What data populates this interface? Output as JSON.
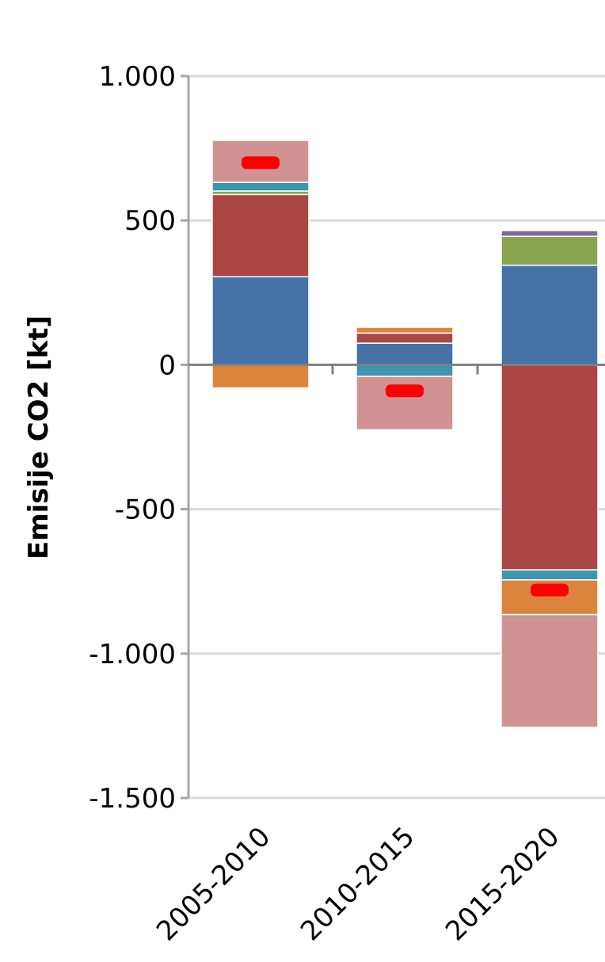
{
  "chart_data": {
    "type": "bar",
    "stacked": true,
    "categories": [
      "2005-2010",
      "2010-2015",
      "2015-2020"
    ],
    "ylabel": "Emisije CO2 [kt]",
    "ylim": [
      -1500,
      1000
    ],
    "yticks": [
      {
        "value": 1000,
        "label": "1.000"
      },
      {
        "value": 500,
        "label": "500"
      },
      {
        "value": 0,
        "label": "0"
      },
      {
        "value": -500,
        "label": "-500"
      },
      {
        "value": -1000,
        "label": "-1.000"
      },
      {
        "value": -1500,
        "label": "-1.500"
      }
    ],
    "grid": true,
    "legend": "none",
    "series": [
      {
        "color": "#4572A7",
        "values": [
          305,
          75,
          345
        ]
      },
      {
        "color": "#AA4643",
        "values": [
          285,
          35,
          -710
        ]
      },
      {
        "color": "#89A54E",
        "values": [
          12,
          0,
          100
        ]
      },
      {
        "color": "#80699B",
        "values": [
          0,
          0,
          20
        ]
      },
      {
        "color": "#3D96AE",
        "values": [
          30,
          -40,
          -35
        ]
      },
      {
        "color": "#DB843D",
        "values": [
          -80,
          20,
          -120
        ]
      },
      {
        "color": "#D09292",
        "values": [
          145,
          -185,
          -390
        ]
      }
    ],
    "net": {
      "color": "#FF0000",
      "values": [
        700,
        -90,
        -780
      ]
    }
  }
}
